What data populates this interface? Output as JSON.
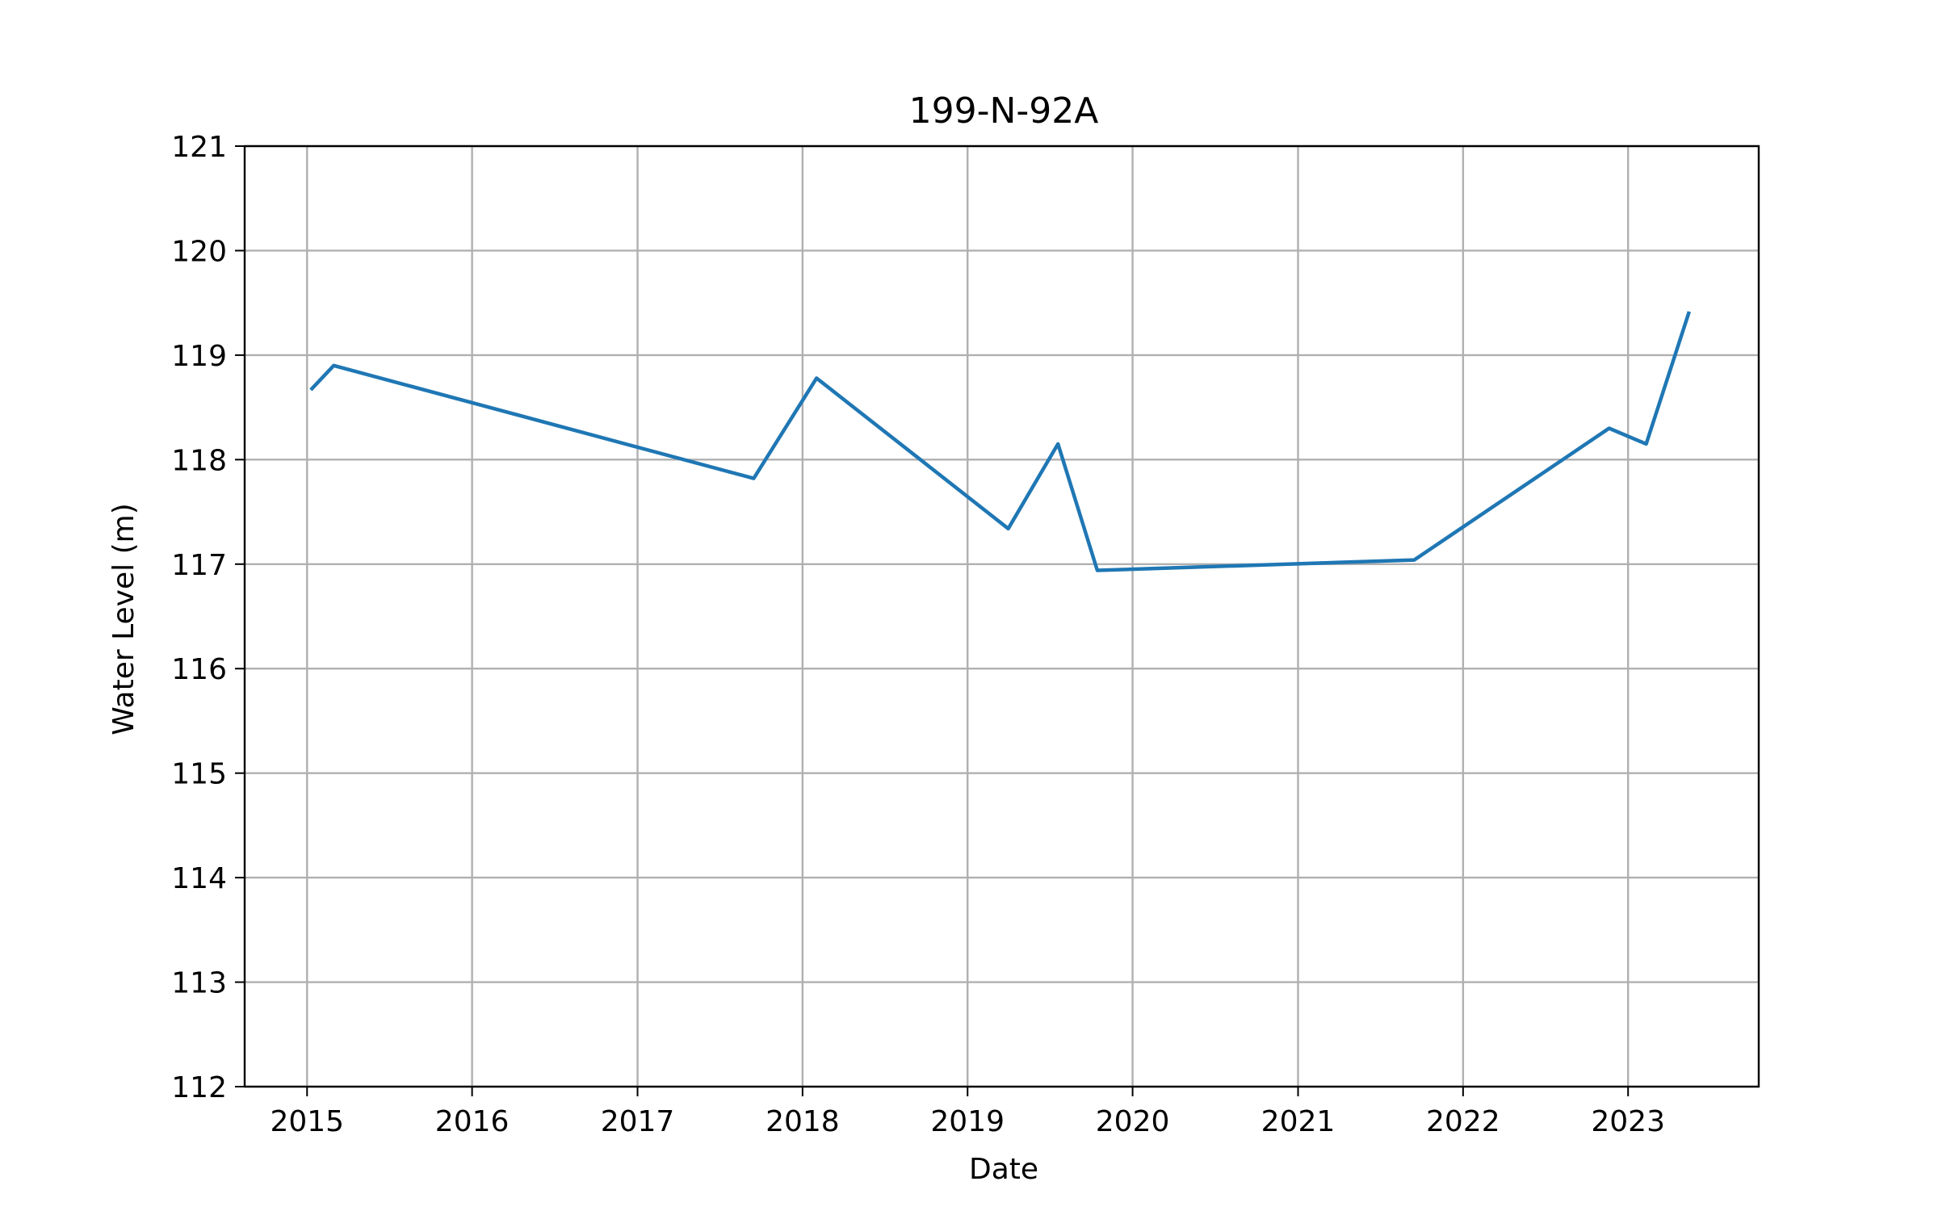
{
  "chart_data": {
    "type": "line",
    "title": "199-N-92A",
    "xlabel": "Date",
    "ylabel": "Water Level (m)",
    "xlim": [
      "2014-08-16",
      "2023-10-17"
    ],
    "ylim": [
      112,
      121
    ],
    "x_ticks": [
      "2015",
      "2016",
      "2017",
      "2018",
      "2019",
      "2020",
      "2021",
      "2022",
      "2023"
    ],
    "y_ticks": [
      "112",
      "113",
      "114",
      "115",
      "116",
      "117",
      "118",
      "119",
      "120",
      "121"
    ],
    "grid": true,
    "line_color": "#1f77b4",
    "series": [
      {
        "x": [
          "2015-01-12",
          "2015-03-01",
          "2017-09-15",
          "2018-02-01",
          "2019-04-01",
          "2019-07-20",
          "2019-10-15",
          "2021-09-15",
          "2022-11-20",
          "2023-02-10",
          "2023-05-15"
        ],
        "values": [
          118.68,
          118.9,
          117.82,
          118.78,
          117.34,
          118.15,
          116.94,
          117.04,
          118.3,
          118.15,
          119.4
        ]
      }
    ]
  }
}
